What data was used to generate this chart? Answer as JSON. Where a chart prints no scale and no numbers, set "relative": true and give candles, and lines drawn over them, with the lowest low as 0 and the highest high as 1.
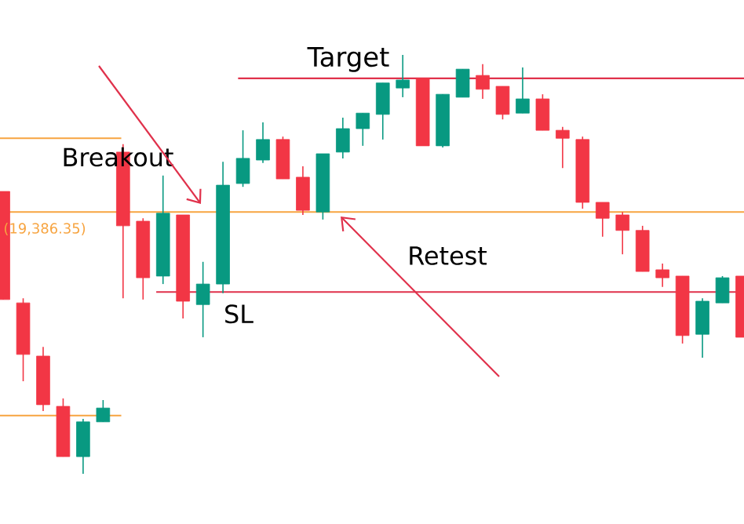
{
  "chart_data": {
    "type": "candlestick",
    "relative": true,
    "categories": [
      null,
      null,
      null,
      null,
      null,
      null,
      null,
      null,
      null,
      null,
      null,
      null,
      null,
      null,
      null,
      null,
      null,
      null,
      null,
      null,
      null,
      null,
      null,
      null,
      null,
      null,
      null,
      null,
      null,
      null,
      null,
      null,
      null,
      null,
      null,
      null,
      null,
      null
    ],
    "ohlc": [
      [
        0.674,
        0.674,
        0.416,
        0.416
      ],
      [
        0.408,
        0.419,
        0.221,
        0.285
      ],
      [
        0.281,
        0.303,
        0.15,
        0.165
      ],
      [
        0.161,
        0.18,
        0.041,
        0.041
      ],
      [
        0.041,
        0.131,
        0.0,
        0.124
      ],
      [
        0.124,
        0.176,
        0.124,
        0.157
      ],
      [
        0.768,
        0.787,
        0.419,
        0.592
      ],
      [
        0.603,
        0.61,
        0.416,
        0.468
      ],
      [
        0.472,
        0.712,
        0.453,
        0.622
      ],
      [
        0.618,
        0.618,
        0.371,
        0.412
      ],
      [
        0.404,
        0.506,
        0.326,
        0.453
      ],
      [
        0.453,
        0.745,
        0.431,
        0.689
      ],
      [
        0.693,
        0.82,
        0.685,
        0.753
      ],
      [
        0.749,
        0.839,
        0.742,
        0.798
      ],
      [
        0.798,
        0.805,
        0.704,
        0.704
      ],
      [
        0.708,
        0.734,
        0.618,
        0.629
      ],
      [
        0.625,
        0.764,
        0.607,
        0.764
      ],
      [
        0.768,
        0.85,
        0.753,
        0.824
      ],
      [
        0.824,
        0.861,
        0.783,
        0.861
      ],
      [
        0.858,
        0.933,
        0.798,
        0.933
      ],
      [
        0.921,
        1.0,
        0.899,
        0.94
      ],
      [
        0.944,
        0.944,
        0.783,
        0.783
      ],
      [
        0.783,
        0.906,
        0.779,
        0.906
      ],
      [
        0.899,
        0.966,
        0.899,
        0.966
      ],
      [
        0.951,
        0.978,
        0.895,
        0.918
      ],
      [
        0.925,
        0.925,
        0.846,
        0.858
      ],
      [
        0.861,
        0.97,
        0.861,
        0.895
      ],
      [
        0.895,
        0.906,
        0.82,
        0.82
      ],
      [
        0.82,
        0.828,
        0.73,
        0.801
      ],
      [
        0.798,
        0.805,
        0.633,
        0.648
      ],
      [
        0.648,
        0.648,
        0.566,
        0.61
      ],
      [
        0.618,
        0.625,
        0.524,
        0.581
      ],
      [
        0.581,
        0.592,
        0.483,
        0.483
      ],
      [
        0.487,
        0.502,
        0.446,
        0.468
      ],
      [
        0.472,
        0.472,
        0.311,
        0.33
      ],
      [
        0.333,
        0.419,
        0.277,
        0.412
      ],
      [
        0.408,
        0.472,
        0.408,
        0.468
      ],
      [
        0.472,
        0.472,
        0.326,
        0.326
      ]
    ],
    "colors": [
      "#f23645",
      "#f23645",
      "#f23645",
      "#f23645",
      "#089981",
      "#089981",
      "#f23645",
      "#f23645",
      "#089981",
      "#f23645",
      "#089981",
      "#089981",
      "#089981",
      "#089981",
      "#f23645",
      "#f23645",
      "#089981",
      "#089981",
      "#089981",
      "#089981",
      "#089981",
      "#f23645",
      "#089981",
      "#089981",
      "#f23645",
      "#f23645",
      "#089981",
      "#f23645",
      "#f23645",
      "#f23645",
      "#f23645",
      "#f23645",
      "#f23645",
      "#f23645",
      "#f23645",
      "#089981",
      "#089981",
      "#f23645"
    ],
    "ref_lines": [
      {
        "axis": "y",
        "value": 0.944,
        "label": "Target",
        "color": "#e0314b"
      },
      {
        "axis": "y",
        "value": 0.434,
        "label": "SL",
        "color": "#e0314b"
      },
      {
        "axis": "y",
        "value": 0.625,
        "color": "#f7a440"
      },
      {
        "axis": "y",
        "value": 0.801,
        "color": "#f7a440"
      },
      {
        "axis": "y",
        "value": 0.139,
        "color": "#f7a440"
      }
    ],
    "annotations": [
      "Breakout",
      "Retest",
      "(19,386.35)"
    ]
  }
}
